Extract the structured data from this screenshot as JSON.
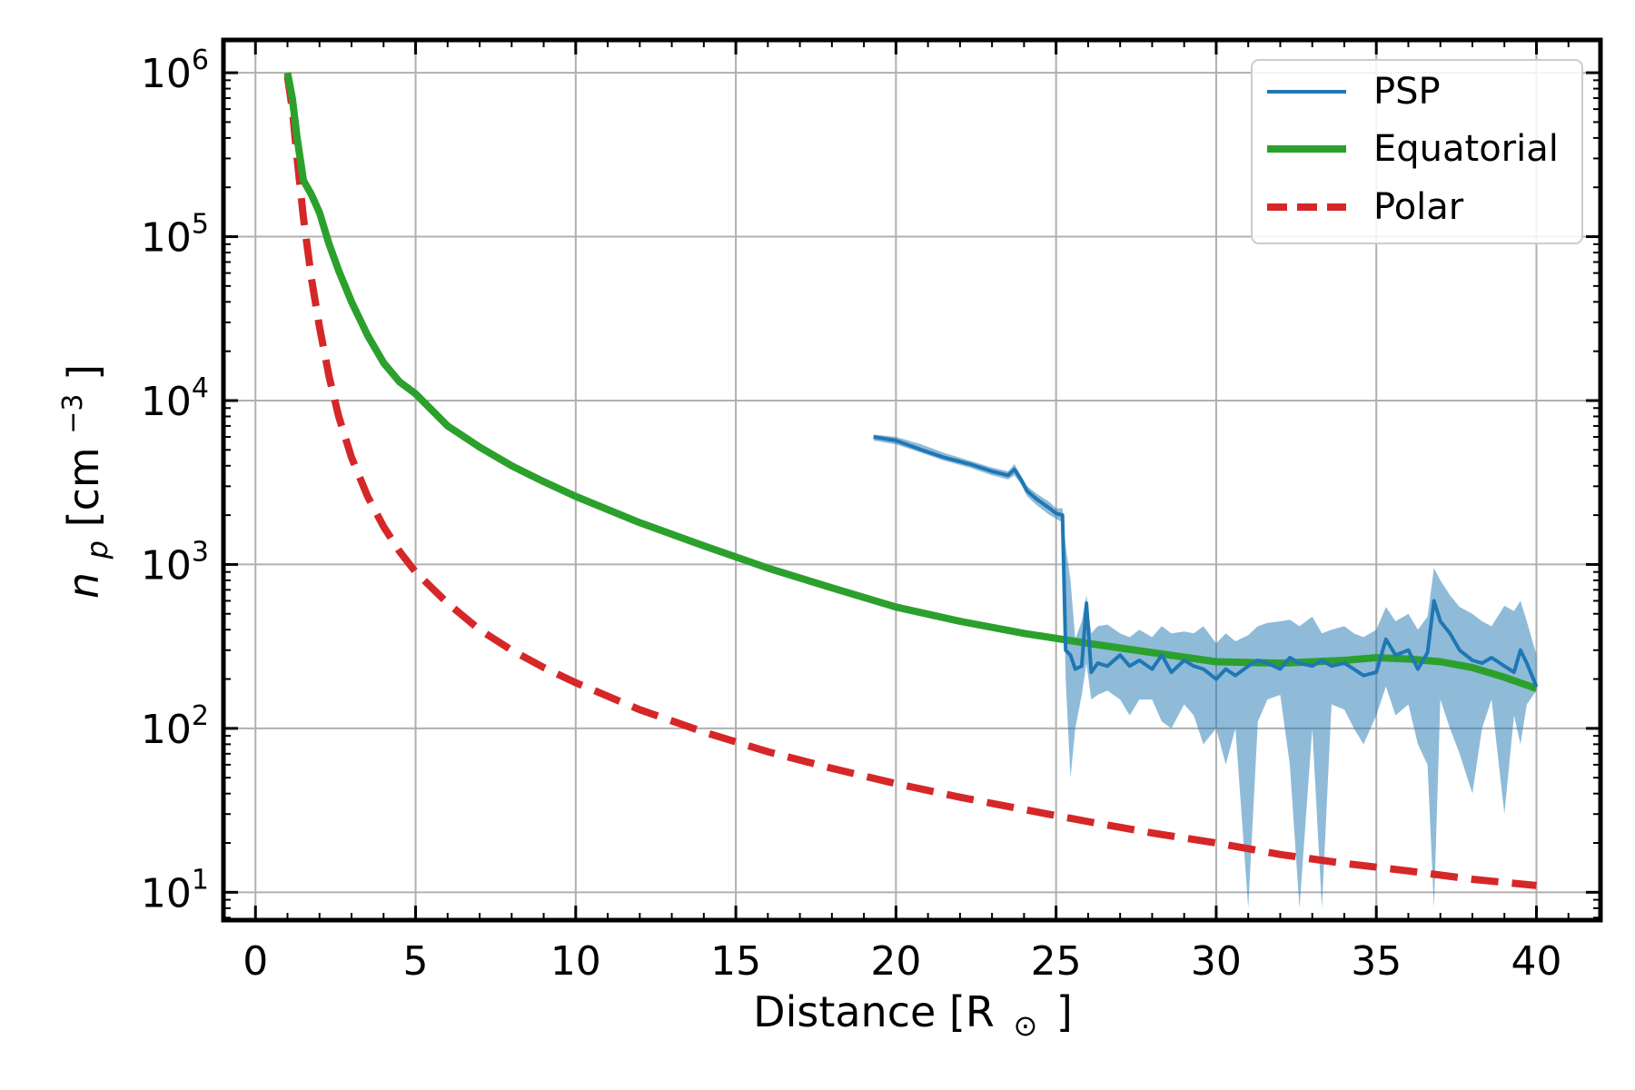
{
  "chart_data": {
    "type": "line",
    "xlabel": "Distance [R☉]",
    "xlabel_parts": {
      "main": "Distance [R",
      "sub": "⊙",
      "close": "]"
    },
    "ylabel": "n_p [cm^-3]",
    "ylabel_parts": {
      "n": "n",
      "p": "p",
      "open": " [cm",
      "exp": "−3",
      "close": "]"
    },
    "xlim": [
      -1,
      42
    ],
    "ylim_log10": [
      0.83,
      6.2
    ],
    "yscale": "log",
    "grid": true,
    "legend_position": "top-right",
    "xticks": [
      0,
      5,
      10,
      15,
      20,
      25,
      30,
      35,
      40
    ],
    "yticks": [
      {
        "base": "10",
        "exp": "1",
        "value": 10
      },
      {
        "base": "10",
        "exp": "2",
        "value": 100
      },
      {
        "base": "10",
        "exp": "3",
        "value": 1000
      },
      {
        "base": "10",
        "exp": "4",
        "value": 10000
      },
      {
        "base": "10",
        "exp": "5",
        "value": 100000
      },
      {
        "base": "10",
        "exp": "6",
        "value": 1000000
      }
    ],
    "series": [
      {
        "name": "PSP",
        "color": "#1f77b4",
        "style": "solid",
        "x": [
          19.3,
          20.0,
          20.8,
          21.5,
          22.3,
          23.0,
          23.5,
          23.7,
          23.9,
          24.1,
          24.4,
          24.8,
          25.0,
          25.2,
          25.3,
          25.45,
          25.6,
          25.8,
          25.95,
          26.1,
          26.3,
          26.6,
          27.0,
          27.3,
          27.6,
          28.0,
          28.3,
          28.6,
          29.0,
          29.3,
          29.6,
          30.0,
          30.3,
          30.6,
          31.0,
          31.3,
          31.6,
          32.0,
          32.3,
          32.6,
          33.0,
          33.3,
          33.6,
          34.0,
          34.3,
          34.6,
          35.0,
          35.3,
          35.6,
          36.0,
          36.3,
          36.6,
          36.8,
          37.0,
          37.3,
          37.6,
          38.0,
          38.3,
          38.6,
          39.0,
          39.3,
          39.5,
          39.7,
          40.0
        ],
        "y": [
          6000,
          5700,
          5000,
          4500,
          4100,
          3700,
          3500,
          3800,
          3300,
          2800,
          2500,
          2200,
          2050,
          2000,
          300,
          280,
          230,
          240,
          580,
          220,
          250,
          240,
          280,
          240,
          260,
          230,
          280,
          220,
          260,
          240,
          230,
          200,
          230,
          210,
          240,
          260,
          250,
          230,
          270,
          250,
          240,
          260,
          240,
          250,
          230,
          210,
          220,
          350,
          280,
          300,
          230,
          290,
          600,
          450,
          380,
          300,
          260,
          250,
          270,
          240,
          220,
          300,
          250,
          180
        ],
        "band_lower": [
          5700,
          5400,
          4800,
          4300,
          3900,
          3500,
          3300,
          3500,
          3100,
          2600,
          2300,
          2000,
          1900,
          1800,
          200,
          50,
          100,
          160,
          250,
          150,
          160,
          170,
          150,
          120,
          150,
          150,
          110,
          100,
          140,
          120,
          80,
          100,
          60,
          100,
          8,
          110,
          150,
          160,
          60,
          8,
          100,
          8,
          140,
          130,
          100,
          80,
          120,
          180,
          120,
          140,
          80,
          60,
          8,
          150,
          100,
          70,
          40,
          100,
          150,
          30,
          120,
          80,
          140,
          170
        ],
        "band_upper": [
          6200,
          6000,
          5400,
          4800,
          4300,
          3900,
          3700,
          4100,
          3500,
          3000,
          2700,
          2400,
          2200,
          2200,
          1300,
          800,
          350,
          450,
          650,
          380,
          420,
          430,
          380,
          360,
          400,
          360,
          420,
          380,
          390,
          380,
          420,
          330,
          380,
          340,
          370,
          420,
          440,
          450,
          460,
          420,
          480,
          380,
          400,
          420,
          380,
          360,
          400,
          550,
          450,
          500,
          400,
          480,
          950,
          800,
          650,
          550,
          500,
          450,
          420,
          560,
          520,
          600,
          450,
          280
        ]
      },
      {
        "name": "Equatorial",
        "color": "#2ca02c",
        "style": "solid",
        "x": [
          1.0,
          1.15,
          1.3,
          1.5,
          1.75,
          2.0,
          2.3,
          2.6,
          3.0,
          3.5,
          4.0,
          4.5,
          5.0,
          6.0,
          7.0,
          8.0,
          9.0,
          10.0,
          12.0,
          14.0,
          16.0,
          18.0,
          20.0,
          22.0,
          24.0,
          26.0,
          28.0,
          30.0,
          32.0,
          34.0,
          35.0,
          36.0,
          37.0,
          38.0,
          39.0,
          40.0
        ],
        "y": [
          1000000,
          700000,
          400000,
          220000,
          180000,
          140000,
          90000,
          62000,
          40000,
          25000,
          17000,
          13000,
          11000,
          7000,
          5200,
          4000,
          3200,
          2600,
          1800,
          1300,
          950,
          720,
          550,
          450,
          380,
          330,
          290,
          255,
          250,
          260,
          270,
          265,
          255,
          235,
          205,
          175
        ]
      },
      {
        "name": "Polar",
        "color": "#d62728",
        "style": "dashed",
        "x": [
          1.0,
          1.15,
          1.3,
          1.5,
          1.75,
          2.0,
          2.3,
          2.6,
          3.0,
          3.5,
          4.0,
          4.5,
          5.0,
          6.0,
          7.0,
          8.0,
          9.0,
          10.0,
          12.0,
          14.0,
          16.0,
          18.0,
          20.0,
          22.0,
          24.0,
          26.0,
          28.0,
          30.0,
          32.0,
          34.0,
          36.0,
          38.0,
          40.0
        ],
        "y": [
          950000,
          600000,
          300000,
          130000,
          55000,
          28000,
          14000,
          8000,
          4500,
          2600,
          1700,
          1200,
          900,
          580,
          400,
          300,
          235,
          190,
          130,
          95,
          72,
          57,
          46,
          38,
          32,
          27,
          23,
          20,
          17,
          15,
          13.5,
          12,
          11
        ]
      }
    ]
  }
}
